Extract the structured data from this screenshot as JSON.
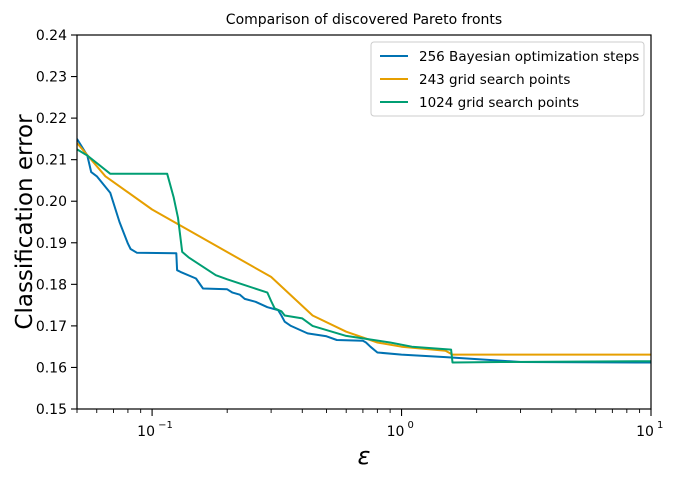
{
  "chart_data": {
    "type": "line",
    "title": "Comparison of discovered Pareto fronts",
    "xlabel": "ε",
    "ylabel": "Classification error",
    "xscale": "log",
    "xlim": [
      0.05,
      10
    ],
    "ylim": [
      0.15,
      0.24
    ],
    "grid": false,
    "legend_position": "top-right",
    "x_ticks": [
      {
        "value": 0.1,
        "base": "10",
        "exp": "−1"
      },
      {
        "value": 1,
        "base": "10",
        "exp": "0"
      },
      {
        "value": 10,
        "base": "10",
        "exp": "1"
      }
    ],
    "y_ticks": [
      {
        "value": 0.15,
        "label": "0.15"
      },
      {
        "value": 0.16,
        "label": "0.16"
      },
      {
        "value": 0.17,
        "label": "0.17"
      },
      {
        "value": 0.18,
        "label": "0.18"
      },
      {
        "value": 0.19,
        "label": "0.19"
      },
      {
        "value": 0.2,
        "label": "0.20"
      },
      {
        "value": 0.21,
        "label": "0.21"
      },
      {
        "value": 0.22,
        "label": "0.22"
      },
      {
        "value": 0.23,
        "label": "0.23"
      },
      {
        "value": 0.24,
        "label": "0.24"
      }
    ],
    "series": [
      {
        "name": "256 Bayesian optimization steps",
        "color": "#0072b2",
        "points": [
          [
            0.05,
            0.215
          ],
          [
            0.055,
            0.211
          ],
          [
            0.057,
            0.207
          ],
          [
            0.06,
            0.206
          ],
          [
            0.068,
            0.202
          ],
          [
            0.074,
            0.195
          ],
          [
            0.08,
            0.1898
          ],
          [
            0.082,
            0.1885
          ],
          [
            0.087,
            0.1876
          ],
          [
            0.125,
            0.1875
          ],
          [
            0.126,
            0.1834
          ],
          [
            0.13,
            0.183
          ],
          [
            0.15,
            0.1814
          ],
          [
            0.16,
            0.179
          ],
          [
            0.2,
            0.1788
          ],
          [
            0.21,
            0.178
          ],
          [
            0.225,
            0.1775
          ],
          [
            0.235,
            0.1765
          ],
          [
            0.26,
            0.1758
          ],
          [
            0.29,
            0.1745
          ],
          [
            0.32,
            0.1738
          ],
          [
            0.33,
            0.1725
          ],
          [
            0.34,
            0.171
          ],
          [
            0.36,
            0.17
          ],
          [
            0.42,
            0.1682
          ],
          [
            0.5,
            0.1675
          ],
          [
            0.55,
            0.1666
          ],
          [
            0.7,
            0.1664
          ],
          [
            0.72,
            0.166
          ],
          [
            0.75,
            0.165
          ],
          [
            0.8,
            0.1636
          ],
          [
            1.0,
            0.1631
          ],
          [
            1.5,
            0.1625
          ],
          [
            2.0,
            0.162
          ],
          [
            3.0,
            0.1613
          ],
          [
            10.0,
            0.1612
          ]
        ]
      },
      {
        "name": "243 grid search points",
        "color": "#e69f00",
        "points": [
          [
            0.05,
            0.214
          ],
          [
            0.065,
            0.206
          ],
          [
            0.1,
            0.198
          ],
          [
            0.3,
            0.1818
          ],
          [
            0.44,
            0.1725
          ],
          [
            0.6,
            0.1686
          ],
          [
            0.8,
            0.166
          ],
          [
            1.0,
            0.165
          ],
          [
            1.5,
            0.164
          ],
          [
            1.6,
            0.1631
          ],
          [
            10.0,
            0.1631
          ]
        ]
      },
      {
        "name": "1024 grid search points",
        "color": "#009e73",
        "points": [
          [
            0.05,
            0.2125
          ],
          [
            0.055,
            0.211
          ],
          [
            0.068,
            0.2066
          ],
          [
            0.115,
            0.2066
          ],
          [
            0.122,
            0.201
          ],
          [
            0.127,
            0.196
          ],
          [
            0.132,
            0.1878
          ],
          [
            0.14,
            0.1865
          ],
          [
            0.18,
            0.1822
          ],
          [
            0.2,
            0.1812
          ],
          [
            0.23,
            0.18
          ],
          [
            0.29,
            0.178
          ],
          [
            0.3,
            0.176
          ],
          [
            0.31,
            0.1742
          ],
          [
            0.33,
            0.1735
          ],
          [
            0.34,
            0.1725
          ],
          [
            0.4,
            0.1718
          ],
          [
            0.44,
            0.17
          ],
          [
            0.6,
            0.1676
          ],
          [
            0.7,
            0.167
          ],
          [
            0.9,
            0.166
          ],
          [
            1.1,
            0.165
          ],
          [
            1.58,
            0.1643
          ],
          [
            1.6,
            0.1612
          ],
          [
            2.5,
            0.1613
          ],
          [
            10.0,
            0.1615
          ]
        ]
      }
    ]
  }
}
